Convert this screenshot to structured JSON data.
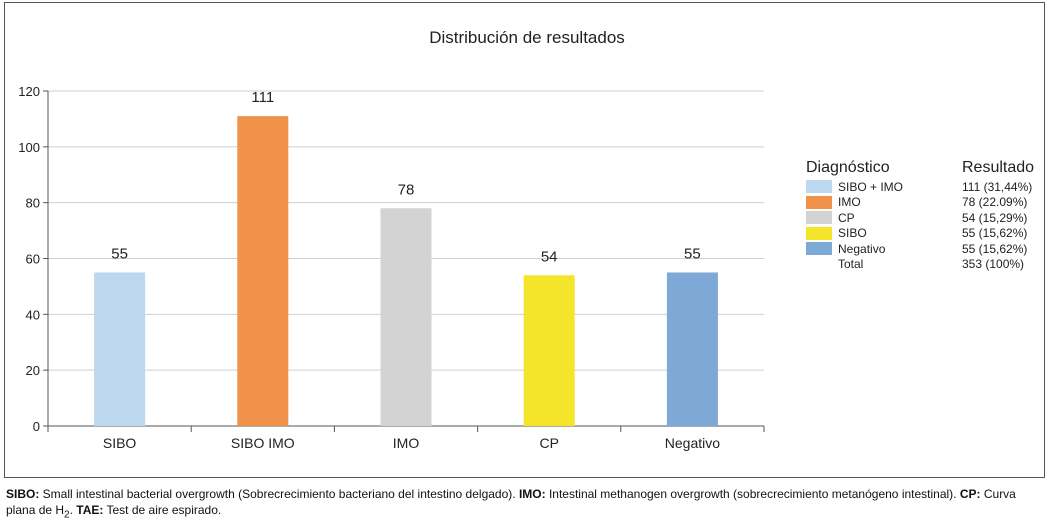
{
  "chart_data": {
    "type": "bar",
    "title": "Distribución de resultados",
    "categories": [
      "SIBO",
      "SIBO IMO",
      "IMO",
      "CP",
      "Negativo"
    ],
    "values": [
      55,
      111,
      78,
      54,
      55
    ],
    "data_labels": [
      "55",
      "111",
      "78",
      "54",
      "55"
    ],
    "colors": [
      "#bdd7ee",
      "#f0924a",
      "#d3d3d3",
      "#f5e52a",
      "#7ea8d5"
    ],
    "ylim": [
      0,
      120
    ],
    "yticks": [
      0,
      20,
      40,
      60,
      80,
      100,
      120
    ],
    "grid": true,
    "legend_position": "right"
  },
  "legend": {
    "header_label": "Diagnóstico",
    "header_value": "Resultado",
    "items": [
      {
        "label": "SIBO + IMO",
        "value": "111 (31,44%)",
        "color": "#bdd7ee"
      },
      {
        "label": "IMO",
        "value": "78 (22.09%)",
        "color": "#f0924a"
      },
      {
        "label": "CP",
        "value": "54 (15,29%)",
        "color": "#d3d3d3"
      },
      {
        "label": "SIBO",
        "value": "55 (15,62%)",
        "color": "#f5e52a"
      },
      {
        "label": "Negativo",
        "value": "55 (15,62%)",
        "color": "#7ea8d5"
      },
      {
        "label": "Total",
        "value": "353 (100%)",
        "color": ""
      }
    ]
  },
  "footnote": {
    "sibo_term": "SIBO:",
    "sibo_def": " Small intestinal bacterial overgrowth (Sobrecrecimiento bacteriano del intestino delgado). ",
    "imo_term": "IMO:",
    "imo_def": " Intestinal methanogen overgrowth (sobrecrecimiento metanógeno intestinal). ",
    "cp_term": "CP:",
    "cp_def_pre": " Curva plana de H",
    "cp_sub": "2",
    "cp_def_post": ". ",
    "tae_term": "TAE:",
    "tae_def": " Test de aire espirado."
  }
}
